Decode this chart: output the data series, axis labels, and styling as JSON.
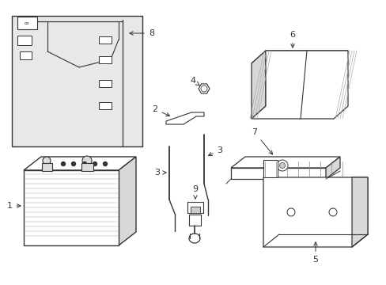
{
  "bg_color": "#ffffff",
  "line_color": "#333333",
  "gray_fill": "#e8e8e8",
  "dark_gray": "#d8d8d8",
  "mid_gray": "#cccccc"
}
